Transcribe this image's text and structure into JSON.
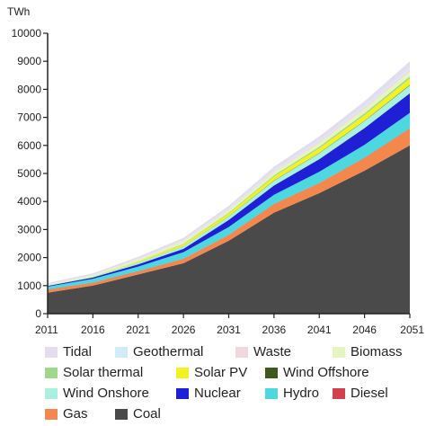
{
  "chart_data": {
    "type": "area",
    "stacked": true,
    "title": "",
    "unit_label": "TWh",
    "xlabel": "",
    "ylabel": "",
    "x": [
      2011,
      2016,
      2021,
      2026,
      2031,
      2036,
      2041,
      2046,
      2051
    ],
    "x_ticks": [
      "2011",
      "2016",
      "2021",
      "2026",
      "2031",
      "2036",
      "2041",
      "2046",
      "2051"
    ],
    "ylim": [
      0,
      10000
    ],
    "y_ticks": [
      "0",
      "1000",
      "2000",
      "3000",
      "4000",
      "5000",
      "6000",
      "7000",
      "8000",
      "9000",
      "10000"
    ],
    "grid": false,
    "legend_position": "bottom",
    "series": [
      {
        "name": "Coal",
        "color": "#4a4a4a",
        "values": [
          750,
          1000,
          1400,
          1800,
          2600,
          3600,
          4300,
          5100,
          6000
        ]
      },
      {
        "name": "Gas",
        "color": "#f4874b",
        "values": [
          100,
          100,
          100,
          150,
          200,
          300,
          350,
          450,
          600
        ]
      },
      {
        "name": "Diesel",
        "color": "#d2404e",
        "values": [
          10,
          10,
          10,
          10,
          10,
          10,
          10,
          10,
          10
        ]
      },
      {
        "name": "Hydro",
        "color": "#4dd8e0",
        "values": [
          100,
          130,
          170,
          230,
          280,
          330,
          400,
          460,
          550
        ]
      },
      {
        "name": "Nuclear",
        "color": "#1f1fd6",
        "values": [
          30,
          50,
          80,
          120,
          250,
          330,
          450,
          600,
          700
        ]
      },
      {
        "name": "Wind Onshore",
        "color": "#a8f0e0",
        "values": [
          15,
          30,
          60,
          90,
          120,
          170,
          210,
          250,
          280
        ]
      },
      {
        "name": "Wind Offshore",
        "color": "#3c5a1e",
        "values": [
          0,
          0,
          2,
          5,
          8,
          10,
          12,
          15,
          20
        ]
      },
      {
        "name": "Solar PV",
        "color": "#f2f220",
        "values": [
          5,
          10,
          40,
          70,
          100,
          140,
          170,
          200,
          230
        ]
      },
      {
        "name": "Solar thermal",
        "color": "#9ed88a",
        "values": [
          0,
          0,
          10,
          20,
          30,
          40,
          50,
          60,
          70
        ]
      },
      {
        "name": "Biomass",
        "color": "#e4f5c0",
        "values": [
          30,
          40,
          60,
          80,
          90,
          110,
          130,
          150,
          170
        ]
      },
      {
        "name": "Waste",
        "color": "#f2d8dc",
        "values": [
          5,
          10,
          15,
          20,
          30,
          40,
          50,
          60,
          70
        ]
      },
      {
        "name": "Geothermal",
        "color": "#d3eaf8",
        "values": [
          0,
          0,
          10,
          20,
          30,
          40,
          50,
          60,
          80
        ]
      },
      {
        "name": "Tidal",
        "color": "#e4dcef",
        "values": [
          50,
          60,
          70,
          90,
          100,
          120,
          140,
          160,
          220
        ]
      }
    ],
    "legend_order": [
      "Tidal",
      "Geothermal",
      "Waste",
      "Biomass",
      "Solar thermal",
      "Solar PV",
      "Wind Offshore",
      "Wind Onshore",
      "Nuclear",
      "Hydro",
      "Diesel",
      "Gas",
      "Coal"
    ]
  }
}
